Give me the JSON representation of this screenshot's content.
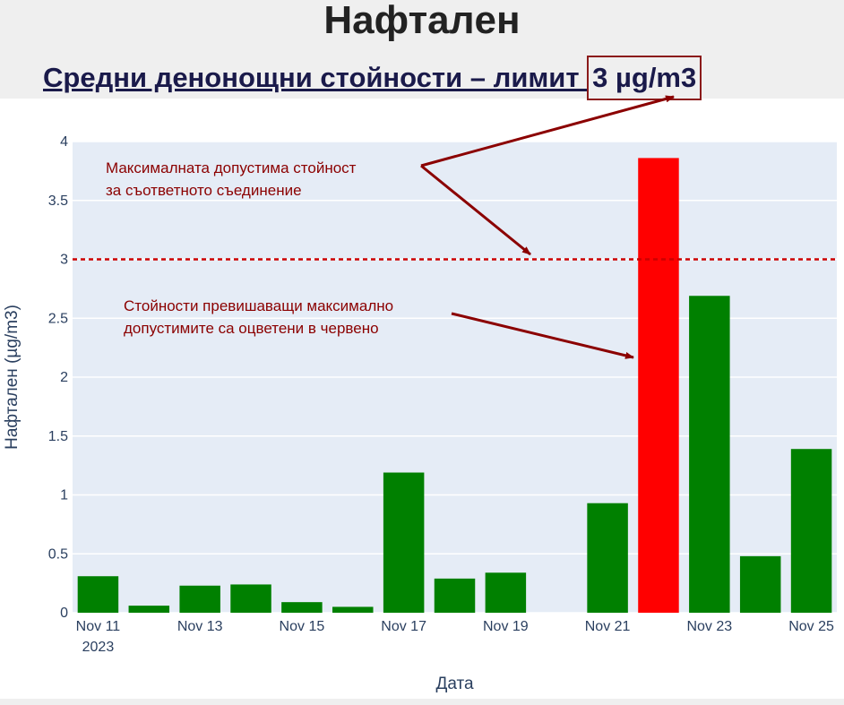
{
  "header": {
    "title": "Нафталeн",
    "subtitle_prefix": "Средни денонощни стойности – лимит ",
    "subtitle_limit": "3 µg/m3"
  },
  "annotations": {
    "limit_line_1": "Максималната допустима стойност",
    "limit_line_2": "за съответното съединение",
    "exceed_line_1": "Стойности превишаващи максимално",
    "exceed_line_2": "допустимите са оцветени в червено"
  },
  "colors": {
    "normal": "#008000",
    "exceed": "#ff0000",
    "limit_line": "#cc0000",
    "annotation": "#8b0000",
    "plot_bg": "#e5ecf6"
  },
  "chart_data": {
    "type": "bar",
    "title": "",
    "xlabel": "Дата",
    "ylabel": "Нафтален (µg/m3)",
    "ylim": [
      0,
      4
    ],
    "yticks": [
      "0",
      "0.5",
      "1",
      "1.5",
      "2",
      "2.5",
      "3",
      "3.5",
      "4"
    ],
    "ytick_values": [
      0,
      0.5,
      1,
      1.5,
      2,
      2.5,
      3,
      3.5,
      4
    ],
    "xticks": [
      {
        "label": "Nov 11",
        "sub": "2023",
        "day": 11
      },
      {
        "label": "Nov 13",
        "sub": "",
        "day": 13
      },
      {
        "label": "Nov 15",
        "sub": "",
        "day": 15
      },
      {
        "label": "Nov 17",
        "sub": "",
        "day": 17
      },
      {
        "label": "Nov 19",
        "sub": "",
        "day": 19
      },
      {
        "label": "Nov 21",
        "sub": "",
        "day": 21
      },
      {
        "label": "Nov 23",
        "sub": "",
        "day": 23
      },
      {
        "label": "Nov 25",
        "sub": "",
        "day": 25
      }
    ],
    "x": [
      "2023-11-11",
      "2023-11-12",
      "2023-11-13",
      "2023-11-14",
      "2023-11-15",
      "2023-11-16",
      "2023-11-17",
      "2023-11-18",
      "2023-11-19",
      "2023-11-21",
      "2023-11-22",
      "2023-11-23",
      "2023-11-24",
      "2023-11-25"
    ],
    "days": [
      11,
      12,
      13,
      14,
      15,
      16,
      17,
      18,
      19,
      21,
      22,
      23,
      24,
      25
    ],
    "values": [
      0.31,
      0.06,
      0.23,
      0.24,
      0.09,
      0.05,
      1.19,
      0.29,
      0.34,
      0.93,
      3.86,
      2.69,
      0.48,
      1.39
    ],
    "limit": 3,
    "grid": true
  }
}
